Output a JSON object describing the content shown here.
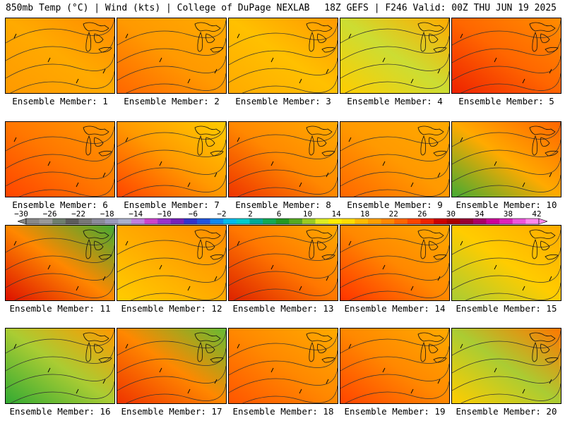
{
  "header": {
    "left": "850mb Temp (°C) | Wind (kts) | College of DuPage NEXLAB",
    "right": "18Z GEFS | F246 Valid: 00Z THU JUN 19 2025"
  },
  "members": [
    {
      "label": "Ensemble Member: 1",
      "fill": [
        "#ff9900",
        "#ffaa00",
        "#ff8c00"
      ]
    },
    {
      "label": "Ensemble Member: 2",
      "fill": [
        "#ff6600",
        "#ff9900",
        "#ffaa00"
      ]
    },
    {
      "label": "Ensemble Member: 3",
      "fill": [
        "#ffaa00",
        "#ffc000",
        "#ff9900"
      ]
    },
    {
      "label": "Ensemble Member: 4",
      "fill": [
        "#ffcc00",
        "#ccdd33",
        "#ffaa00"
      ]
    },
    {
      "label": "Ensemble Member: 5",
      "fill": [
        "#ee2200",
        "#ff6600",
        "#ff8c00"
      ]
    },
    {
      "label": "Ensemble Member: 6",
      "fill": [
        "#ff4400",
        "#ff7700",
        "#ff9900"
      ]
    },
    {
      "label": "Ensemble Member: 7",
      "fill": [
        "#ff4400",
        "#ff9900",
        "#ffcc00"
      ]
    },
    {
      "label": "Ensemble Member: 8",
      "fill": [
        "#ee3300",
        "#ff8800",
        "#ffaa00"
      ]
    },
    {
      "label": "Ensemble Member: 9",
      "fill": [
        "#ff6600",
        "#ff9900",
        "#ffaa00"
      ]
    },
    {
      "label": "Ensemble Member: 10",
      "fill": [
        "#44aa33",
        "#ffaa00",
        "#ff6600"
      ]
    },
    {
      "label": "Ensemble Member: 11",
      "fill": [
        "#dd1100",
        "#ff8800",
        "#44aa33"
      ]
    },
    {
      "label": "Ensemble Member: 12",
      "fill": [
        "#ffcc00",
        "#ffaa00",
        "#ff8c00"
      ]
    },
    {
      "label": "Ensemble Member: 13",
      "fill": [
        "#dd2200",
        "#ff7700",
        "#ffaa00"
      ]
    },
    {
      "label": "Ensemble Member: 14",
      "fill": [
        "#ff3300",
        "#ff8800",
        "#ffaa00"
      ]
    },
    {
      "label": "Ensemble Member: 15",
      "fill": [
        "#aacc33",
        "#ffcc00",
        "#ffaa00"
      ]
    },
    {
      "label": "Ensemble Member: 16",
      "fill": [
        "#33aa33",
        "#aacc33",
        "#ff9900"
      ]
    },
    {
      "label": "Ensemble Member: 17",
      "fill": [
        "#ee3300",
        "#ff8800",
        "#66bb33"
      ]
    },
    {
      "label": "Ensemble Member: 18",
      "fill": [
        "#ff5500",
        "#ff8800",
        "#ffaa00"
      ]
    },
    {
      "label": "Ensemble Member: 19",
      "fill": [
        "#ff4400",
        "#ff8800",
        "#ffaa00"
      ]
    },
    {
      "label": "Ensemble Member: 20",
      "fill": [
        "#ffcc00",
        "#aacc33",
        "#ff7700"
      ]
    }
  ],
  "colorbar": {
    "labels": [
      "−30",
      "−26",
      "−22",
      "−18",
      "−14",
      "−10",
      "−6",
      "−2",
      "2",
      "6",
      "10",
      "14",
      "18",
      "22",
      "26",
      "30",
      "34",
      "38",
      "42"
    ],
    "colors": [
      "#888888",
      "#999999",
      "#6e7e6e",
      "#5c5c5c",
      "#777777",
      "#8a8a9a",
      "#9a9abb",
      "#aab0cc",
      "#c080e0",
      "#cc44cc",
      "#9933cc",
      "#7722bb",
      "#3333cc",
      "#2255dd",
      "#1188ee",
      "#00bbee",
      "#00cccc",
      "#00aa99",
      "#11aa55",
      "#229922",
      "#55aa22",
      "#99cc22",
      "#ddee22",
      "#ffee00",
      "#ffdd00",
      "#ffbb00",
      "#ffa000",
      "#ff8800",
      "#ff6600",
      "#ff4400",
      "#ee2200",
      "#cc0000",
      "#aa0000",
      "#990033",
      "#aa0066",
      "#cc0099",
      "#dd22bb",
      "#ee55dd",
      "#ff88ee"
    ]
  }
}
